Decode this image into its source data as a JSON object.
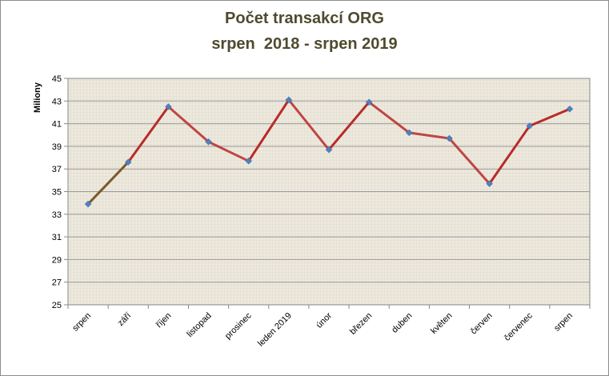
{
  "chart_data": {
    "type": "line",
    "title_line_1": "Počet transakcí ORG",
    "title_line_2": "srpen  2018 - srpen 2019",
    "ylabel": "Miliony",
    "xlabel": "",
    "ylim": [
      25,
      45
    ],
    "yticks": [
      25,
      27,
      29,
      31,
      33,
      35,
      37,
      39,
      41,
      43,
      45
    ],
    "categories": [
      "srpen",
      "září",
      "říjen",
      "listopad",
      "prosinec",
      "leden 2019",
      "únor",
      "březen",
      "duben",
      "květen",
      "červen",
      "červenec",
      "srpen"
    ],
    "values": [
      33.9,
      37.6,
      42.5,
      39.4,
      37.7,
      43.1,
      38.7,
      42.9,
      40.2,
      39.7,
      35.7,
      40.8,
      42.3
    ],
    "grid": true,
    "colors": {
      "line": "#b82b2b",
      "line_dark": "#7a5a2a",
      "marker": "#4f81bd",
      "plot_bg": "#ece7dc",
      "grid": "#9a9a9a"
    }
  }
}
